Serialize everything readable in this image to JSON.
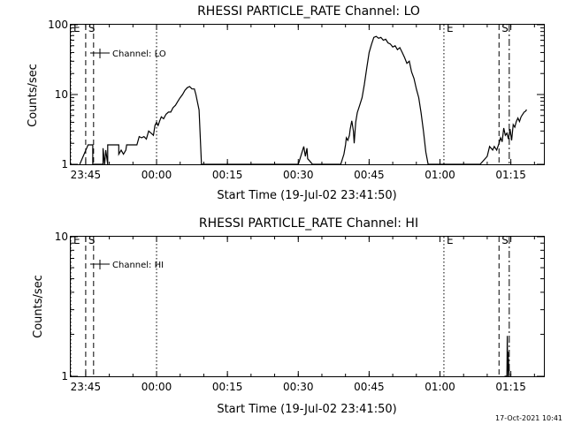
{
  "chart_data": [
    {
      "type": "line",
      "title": "RHESSI PARTICLE_RATE Channel: LO",
      "xlabel": "Start Time (19-Jul-02 23:41:50)",
      "ylabel": "Counts/sec",
      "yscale": "log",
      "ylim": [
        1,
        100
      ],
      "xlim": [
        "23:41:50",
        "01:22:00"
      ],
      "y_tick_labels": [
        "1",
        "10",
        "100"
      ],
      "x_tick_labels": [
        "23:45",
        "00:00",
        "00:15",
        "00:30",
        "00:45",
        "01:00",
        "01:15"
      ],
      "legend": [
        "Channel: LO"
      ],
      "legend_position": "top-left",
      "markers": [
        {
          "label": "E",
          "time": "23:41:50",
          "style": "dotted"
        },
        {
          "label": "S",
          "time": "23:45:00",
          "style": "dashed"
        },
        {
          "label": "",
          "time": "23:46:40",
          "style": "dashed"
        },
        {
          "label": "",
          "time": "00:00:00",
          "style": "dotted"
        },
        {
          "label": "E",
          "time": "01:00:50",
          "style": "dotted"
        },
        {
          "label": "S",
          "time": "01:12:30",
          "style": "dashed"
        },
        {
          "label": "",
          "time": "01:14:40",
          "style": "dash-dot"
        }
      ],
      "series": [
        {
          "name": "Channel: LO",
          "x": [
            "23:43:45",
            "23:45:30",
            "23:45:30",
            "23:46:30",
            "23:46:30",
            "23:48:40",
            "23:48:40",
            "23:49:00",
            "23:49:15",
            "23:49:40",
            "23:49:40",
            "23:52:00",
            "23:52:00",
            "23:52:30",
            "23:53:00",
            "23:53:30",
            "23:53:40",
            "23:54:10",
            "23:54:40",
            "23:55:10",
            "23:55:50",
            "23:56:20",
            "23:56:50",
            "23:57:20",
            "23:57:50",
            "23:58:20",
            "23:58:50",
            "23:59:20",
            "23:59:40",
            "00:00:00",
            "00:00:20",
            "00:00:40",
            "00:01:00",
            "00:01:30",
            "00:02:00",
            "00:02:30",
            "00:03:00",
            "00:03:30",
            "00:04:00",
            "00:04:30",
            "00:05:00",
            "00:05:30",
            "00:06:00",
            "00:06:30",
            "00:07:00",
            "00:07:30",
            "00:08:00",
            "00:08:20",
            "00:09:00",
            "00:09:30",
            "00:30:00",
            "00:31:10",
            "00:31:30",
            "00:31:50",
            "00:32:00",
            "00:32:30",
            "00:33:00",
            "00:33:10",
            "00:39:00",
            "00:39:40",
            "00:40:00",
            "00:40:10",
            "00:40:30",
            "00:40:50",
            "00:41:00",
            "00:41:20",
            "00:41:40",
            "00:41:50",
            "00:42:10",
            "00:42:30",
            "00:43:00",
            "00:43:30",
            "00:44:00",
            "00:44:30",
            "00:45:00",
            "00:45:30",
            "00:46:00",
            "00:46:30",
            "00:47:00",
            "00:47:30",
            "00:48:00",
            "00:48:30",
            "00:49:00",
            "00:49:30",
            "00:50:00",
            "00:50:30",
            "00:51:00",
            "00:51:30",
            "00:52:00",
            "00:52:30",
            "00:53:00",
            "00:53:30",
            "00:54:00",
            "00:54:30",
            "00:55:00",
            "00:55:30",
            "00:56:00",
            "00:56:30",
            "00:57:00",
            "00:57:30",
            "01:08:30",
            "01:10:00",
            "01:10:30",
            "01:11:10",
            "01:11:30",
            "01:12:00",
            "01:12:30",
            "01:12:50",
            "01:13:10",
            "01:13:30",
            "01:13:50",
            "01:14:10",
            "01:14:30",
            "01:14:50",
            "01:15:10",
            "01:15:30",
            "01:15:50",
            "01:16:10",
            "01:16:30",
            "01:16:50",
            "01:17:10",
            "01:17:30",
            "01:17:50",
            "01:18:10",
            "01:18:20"
          ],
          "y": [
            1,
            1.9,
            1.9,
            1.9,
            1,
            1,
            1.7,
            1,
            1.6,
            1,
            1.9,
            1.9,
            1.4,
            1.6,
            1.4,
            1.6,
            1.9,
            1.9,
            1.9,
            1.9,
            1.9,
            2.5,
            2.4,
            2.5,
            2.3,
            3,
            2.8,
            2.6,
            3.6,
            4,
            3.6,
            4.2,
            4.8,
            4.5,
            5.2,
            5.6,
            5.6,
            6.5,
            7,
            8,
            9,
            10,
            11.5,
            12.5,
            13,
            12,
            12,
            10,
            6,
            1,
            1,
            1.8,
            1.3,
            1.7,
            1.2,
            1.1,
            1,
            1,
            1,
            1.4,
            1.9,
            2.4,
            2.2,
            2.6,
            3.2,
            4.2,
            3,
            2,
            4,
            5.5,
            7,
            9,
            14,
            24,
            40,
            52,
            66,
            68,
            64,
            66,
            60,
            62,
            55,
            53,
            48,
            50,
            44,
            47,
            40,
            34,
            28,
            30,
            21,
            17,
            12,
            9,
            5.5,
            3,
            1.5,
            1,
            1,
            1.3,
            1.8,
            1.6,
            1.8,
            1.6,
            2,
            2.4,
            2.1,
            3.3,
            2.6,
            2.8,
            2.3,
            3.2,
            2.2,
            3.7,
            3.4,
            4.1,
            4.6,
            4.1,
            4.8,
            5.2,
            5.6,
            5.8,
            6.1
          ]
        }
      ]
    },
    {
      "type": "line",
      "title": "RHESSI PARTICLE_RATE Channel: HI",
      "xlabel": "Start Time (19-Jul-02 23:41:50)",
      "ylabel": "Counts/sec",
      "yscale": "log",
      "ylim": [
        1,
        10
      ],
      "xlim": [
        "23:41:50",
        "01:22:00"
      ],
      "y_tick_labels": [
        "1",
        "10"
      ],
      "x_tick_labels": [
        "23:45",
        "00:00",
        "00:15",
        "00:30",
        "00:45",
        "01:00",
        "01:15"
      ],
      "legend": [
        "Channel: HI"
      ],
      "legend_position": "top-left",
      "markers": [
        {
          "label": "E",
          "time": "23:41:50",
          "style": "dotted"
        },
        {
          "label": "S",
          "time": "23:45:00",
          "style": "dashed"
        },
        {
          "label": "",
          "time": "23:46:40",
          "style": "dashed"
        },
        {
          "label": "",
          "time": "00:00:00",
          "style": "dotted"
        },
        {
          "label": "E",
          "time": "01:00:50",
          "style": "dotted"
        },
        {
          "label": "S",
          "time": "01:12:30",
          "style": "dashed"
        },
        {
          "label": "",
          "time": "01:14:40",
          "style": "dash-dot"
        }
      ],
      "series": [
        {
          "name": "Channel: HI",
          "x": [
            "01:13:40",
            "01:14:10",
            "01:14:15",
            "01:14:20",
            "01:14:25",
            "01:14:40"
          ],
          "y": [
            1,
            1,
            1.95,
            1,
            1.5,
            1
          ]
        }
      ]
    }
  ],
  "footer": {
    "stamp": "17-Oct-2021 10:41"
  }
}
